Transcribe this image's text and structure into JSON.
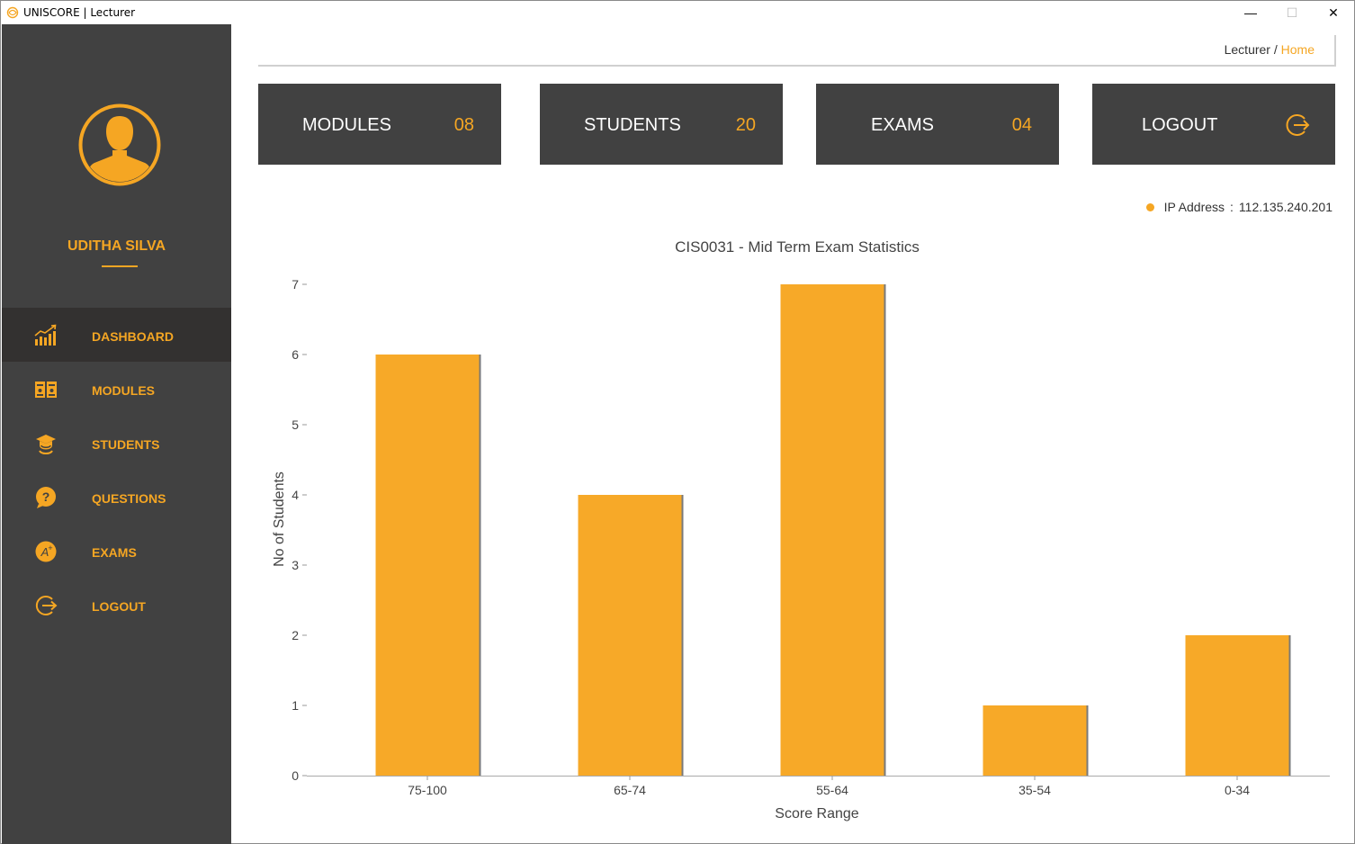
{
  "window": {
    "title": "UNISCORE | Lecturer",
    "minimize": "—",
    "maximize": "☐",
    "close": "✕"
  },
  "user": {
    "name": "UDITHA SILVA"
  },
  "sidebar": {
    "items": [
      {
        "label": "DASHBOARD",
        "icon": "dashboard-chart-icon",
        "active": true
      },
      {
        "label": "MODULES",
        "icon": "modules-book-icon",
        "active": false
      },
      {
        "label": "STUDENTS",
        "icon": "student-graduate-icon",
        "active": false
      },
      {
        "label": "QUESTIONS",
        "icon": "question-bubble-icon",
        "active": false
      },
      {
        "label": "EXAMS",
        "icon": "exam-grade-icon",
        "active": false
      },
      {
        "label": "LOGOUT",
        "icon": "logout-icon",
        "active": false
      }
    ]
  },
  "breadcrumb": {
    "parent": "Lecturer /",
    "current": "Home"
  },
  "cards": {
    "modules": {
      "label": "MODULES",
      "count": "08"
    },
    "students": {
      "label": "STUDENTS",
      "count": "20"
    },
    "exams": {
      "label": "EXAMS",
      "count": "04"
    },
    "logout": {
      "label": "LOGOUT"
    }
  },
  "ip": {
    "label": "IP Address",
    "separator": ":",
    "value": "112.135.240.201"
  },
  "colors": {
    "accent": "#f5a623",
    "sidebar": "#414141",
    "active_nav": "#333130",
    "bar": "#f7a928"
  },
  "chart_data": {
    "type": "bar",
    "title": "CIS0031 - Mid Term Exam Statistics",
    "xlabel": "Score Range",
    "ylabel": "No of Students",
    "categories": [
      "75-100",
      "65-74",
      "55-64",
      "35-54",
      "0-34"
    ],
    "values": [
      6,
      4,
      7,
      1,
      2
    ],
    "ylim": [
      0,
      7
    ],
    "yticks": [
      "0",
      "1",
      "2",
      "3",
      "4",
      "5",
      "6",
      "7"
    ],
    "grid": false,
    "legend": "none"
  }
}
